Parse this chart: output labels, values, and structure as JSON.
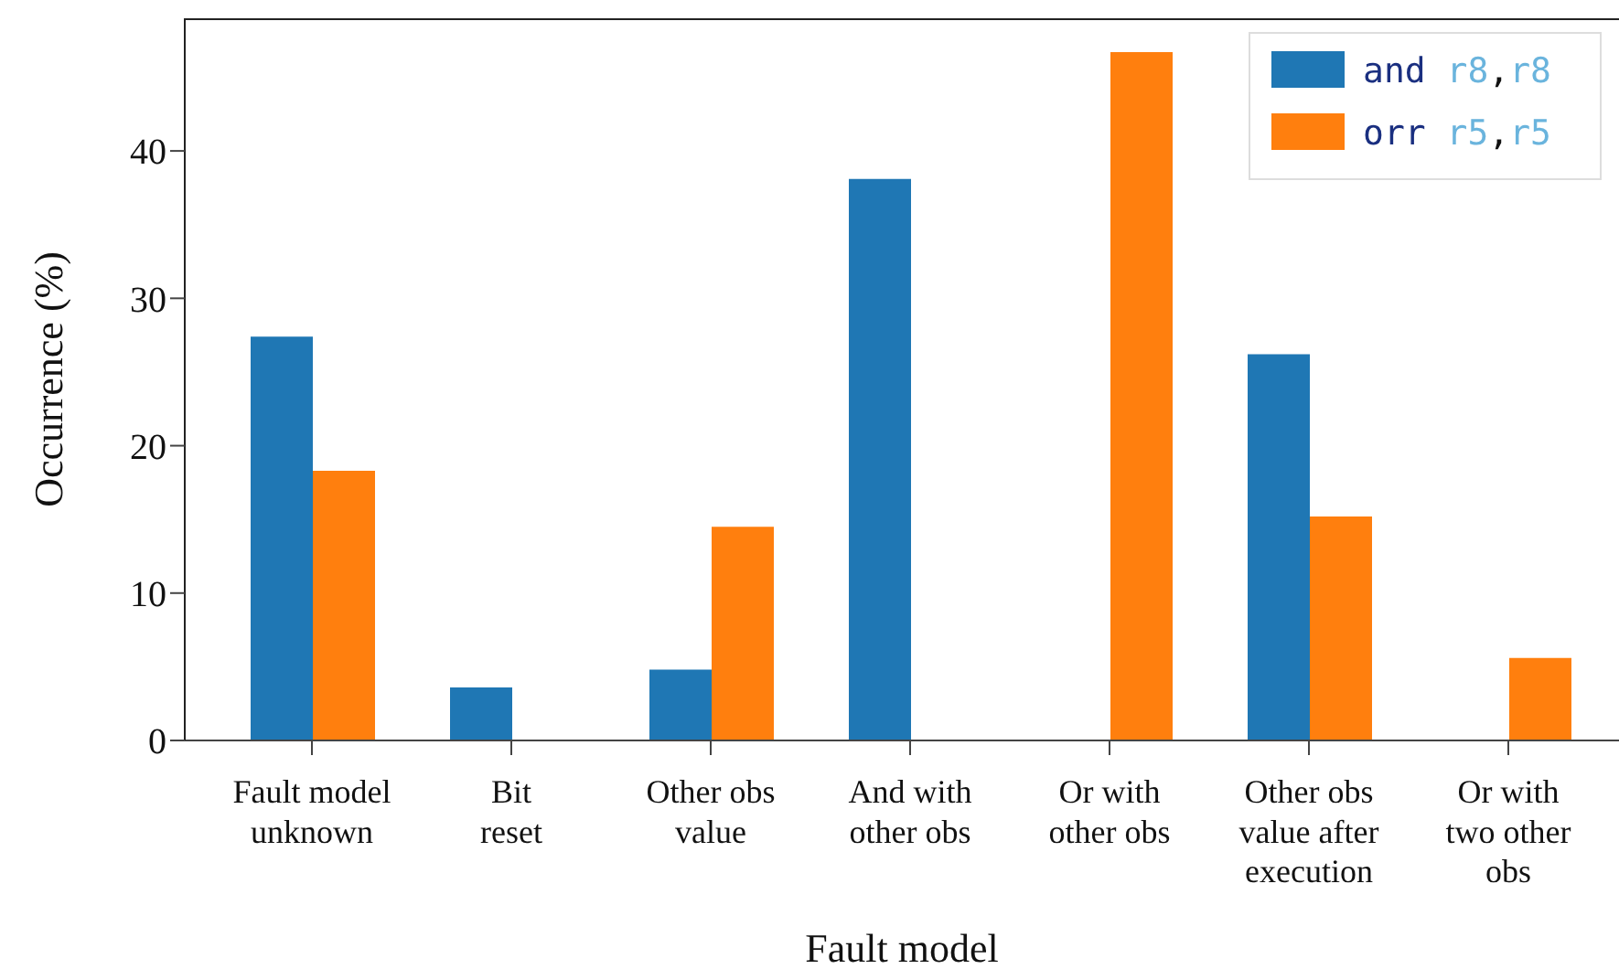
{
  "chart_data": {
    "type": "bar",
    "xlabel": "Fault model",
    "ylabel": "Occurrence (%)",
    "categories": [
      "Fault model\nunknown",
      "Bit\nreset",
      "Other obs\nvalue",
      "And with\nother obs",
      "Or with\nother obs",
      "Other obs\nvalue after\nexecution",
      "Or with\ntwo other\nobs"
    ],
    "series": [
      {
        "name": "and r8,r8",
        "color": "#1f77b4",
        "values": [
          27.4,
          3.6,
          4.8,
          38.1,
          0,
          26.2,
          0
        ]
      },
      {
        "name": "orr r5,r5",
        "color": "#ff7f0e",
        "values": [
          18.3,
          0,
          14.5,
          0,
          46.7,
          15.2,
          5.6
        ]
      }
    ],
    "ylim": [
      0,
      49
    ],
    "yticks": [
      0,
      10,
      20,
      30,
      40
    ],
    "legend": "top right"
  }
}
